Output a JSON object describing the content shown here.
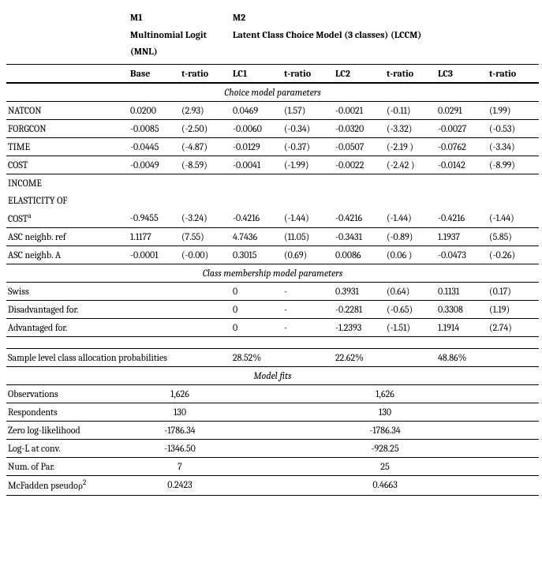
{
  "headers": {
    "m1": "M1",
    "m1_model": "Multinomial Logit (MNL)",
    "m2": "M2",
    "m2_model": "Latent Class Choice Model (3 classes) (LCCM)",
    "base": "Base",
    "tratio": "t-ratio",
    "lc1": "LC1",
    "lc2": "LC2",
    "lc3": "LC3"
  },
  "sections": {
    "choice": "Choice model parameters",
    "membership": "Class membership model parameters",
    "fits": "Model fits"
  },
  "choice_rows": [
    {
      "label": "NATCON",
      "b": "0.0200",
      "bt": "(2.93)",
      "l1": "0.0469",
      "l1t": "(1.57)",
      "l2": "-0.0021",
      "l2t": "(-0.11)",
      "l3": "0.0291",
      "l3t": "(1.99)"
    },
    {
      "label": "FORGCON",
      "b": "-0.0085",
      "bt": "(-2.50)",
      "l1": "-0.0060",
      "l1t": "(-0.34)",
      "l2": "-0.0320",
      "l2t": "(-3.32)",
      "l3": "-0.0027",
      "l3t": "(-0.53)"
    },
    {
      "label": "TIME",
      "b": "-0.0445",
      "bt": "(-4.87)",
      "l1": "-0.0129",
      "l1t": "(-0.37)",
      "l2": "-0.0507",
      "l2t": "(-2.19 )",
      "l3": "-0.0762",
      "l3t": "(-3.34)"
    },
    {
      "label": "COST",
      "b": "-0.0049",
      "bt": "(-8.59)",
      "l1": "-0.0041",
      "l1t": "(-1.99)",
      "l2": "-0.0022",
      "l2t": "(-2.42 )",
      "l3": "-0.0142",
      "l3t": "(-8.99)"
    }
  ],
  "income": {
    "l1": "INCOME",
    "l2": "ELASTICITY OF",
    "l3": "COST",
    "sup": "a",
    "b": "-0.9455",
    "bt": "(-3.24)",
    "c1": "-0.4216",
    "c1t": "(-1.44)",
    "c2": "-0.4216",
    "c2t": "(-1.44)",
    "c3": "-0.4216",
    "c3t": "(-1.44)"
  },
  "asc": [
    {
      "label": "ASC neighb. ref",
      "b": "1.1177",
      "bt": "(7.55)",
      "l1": "4.7436",
      "l1t": "(11.05)",
      "l2": "-0.3431",
      "l2t": "(-0.89)",
      "l3": "1.1937",
      "l3t": "(5.85)"
    },
    {
      "label": "ASC neighb. A",
      "b": "-0.0001",
      "bt": "(-0.00)",
      "l1": "0.3015",
      "l1t": "(0.69)",
      "l2": "0.0086",
      "l2t": "(0.06 )",
      "l3": "-0.0473",
      "l3t": "(-0.26)"
    }
  ],
  "membership": [
    {
      "label": "Swiss",
      "l1": "0",
      "l1t": "-",
      "l2": "0.3931",
      "l2t": "(0.64)",
      "l3": "0.1131",
      "l3t": "(0.17)"
    },
    {
      "label": "Disadvantaged for.",
      "l1": "0",
      "l1t": "-",
      "l2": "-0.2281",
      "l2t": "(-0.65)",
      "l3": "0.3308",
      "l3t": "(1.19)"
    },
    {
      "label": "Advantaged for.",
      "l1": "0",
      "l1t": "-",
      "l2": "-1.2393",
      "l2t": "(-1.51)",
      "l3": "1.1914",
      "l3t": "(2.74)"
    }
  ],
  "sample": {
    "label": "Sample level class allocation probabilities",
    "p1": "28.52%",
    "p2": "22.62%",
    "p3": "48.86%"
  },
  "fits": [
    {
      "label": "Observations",
      "m1": "1,626",
      "m2": "1,626"
    },
    {
      "label": "Respondents",
      "m1": "130",
      "m2": "130"
    },
    {
      "label": "Zero log-likelihood",
      "m1": "-1786.34",
      "m2": "-1786.34"
    },
    {
      "label": "Log-L at conv.",
      "m1": "-1346.50",
      "m2": "-928.25"
    },
    {
      "label": "Num. of Par.",
      "m1": "7",
      "m2": "25"
    }
  ],
  "mcfadden": {
    "label": "McFadden pseudoρ",
    "sup": "2",
    "m1": "0.2423",
    "m2": "0.4663"
  }
}
